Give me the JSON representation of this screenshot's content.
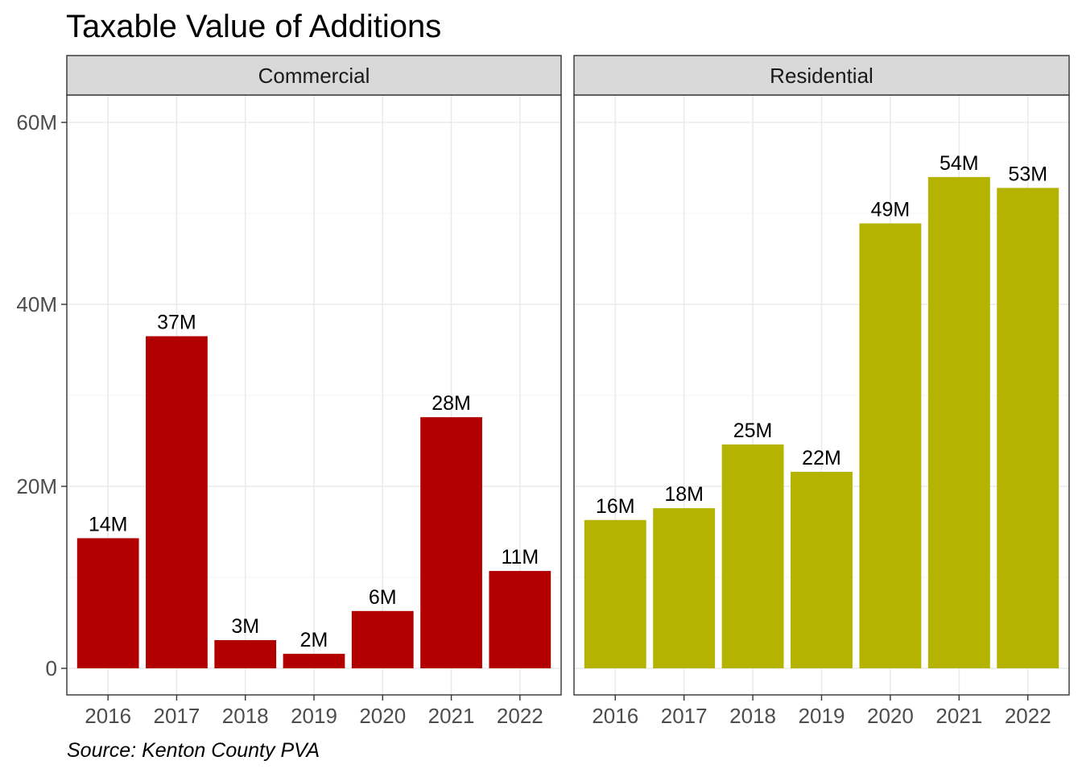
{
  "chart_data": {
    "type": "bar",
    "title": "Taxable Value of Additions",
    "caption": "Source: Kenton County PVA",
    "xlabel": "",
    "ylabel": "",
    "ylim": [
      -3,
      66
    ],
    "yticks": [
      {
        "value": 0,
        "label": "0"
      },
      {
        "value": 20,
        "label": "20M"
      },
      {
        "value": 40,
        "label": "40M"
      },
      {
        "value": 60,
        "label": "60M"
      }
    ],
    "categories": [
      "2016",
      "2017",
      "2018",
      "2019",
      "2020",
      "2021",
      "2022"
    ],
    "facets": [
      {
        "name": "Commercial",
        "color": "#B20000",
        "values": [
          14.3,
          36.5,
          3.1,
          1.6,
          6.3,
          27.6,
          10.7
        ],
        "labels": [
          "14M",
          "37M",
          "3M",
          "2M",
          "6M",
          "28M",
          "11M"
        ]
      },
      {
        "name": "Residential",
        "color": "#B3B300",
        "values": [
          16.3,
          17.6,
          24.6,
          21.6,
          48.9,
          54.0,
          52.8
        ],
        "labels": [
          "16M",
          "18M",
          "25M",
          "22M",
          "49M",
          "54M",
          "53M"
        ]
      }
    ],
    "grid": true,
    "legend": "none"
  },
  "colors": {
    "panel_border": "#333333",
    "strip_fill": "#D9D9D9",
    "grid_major": "#EBEBEB",
    "grid_minor": "#F5F5F5"
  }
}
